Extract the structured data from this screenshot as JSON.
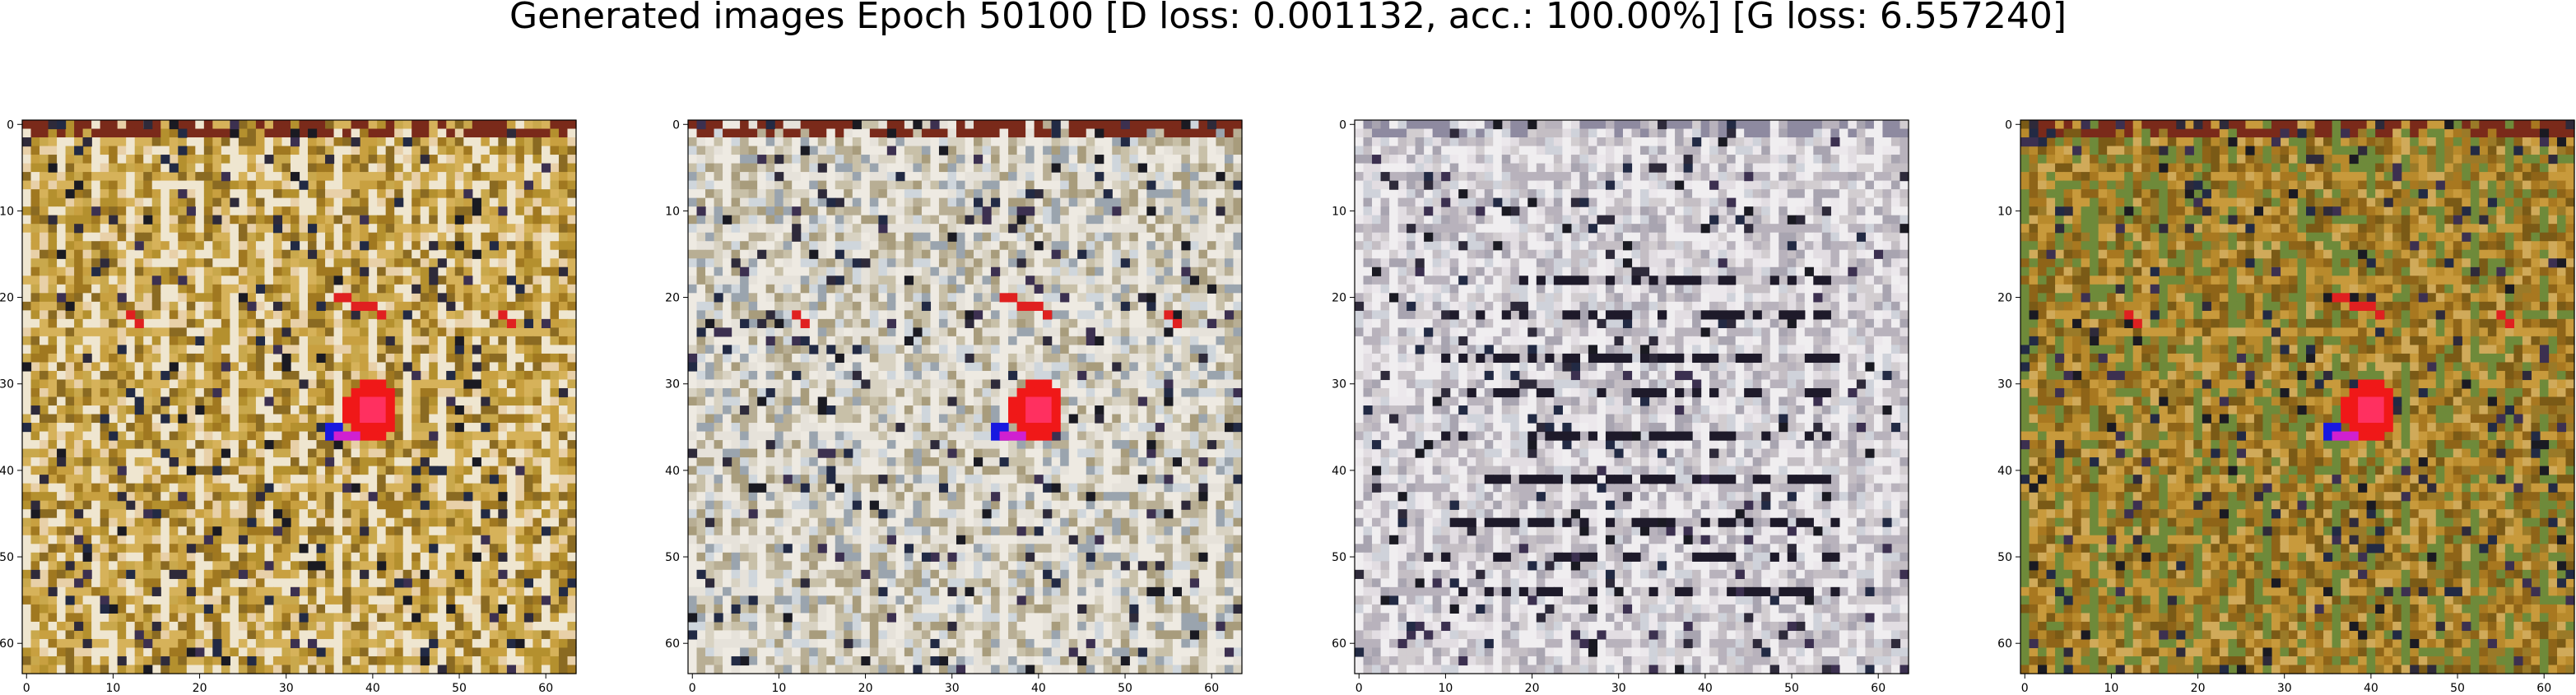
{
  "figure": {
    "title": "Generated images Epoch 50100 [D loss: 0.001132, acc.: 100.00%] [G loss: 6.557240]"
  },
  "panels": [
    {
      "name": "generated-image-1",
      "palette": [
        "#b4902e",
        "#c8a040",
        "#a07820",
        "#d6b25a",
        "#e8d0a8",
        "#8a6a22",
        "#c9a84c",
        "#efe6d0"
      ],
      "overlay": "red-blue",
      "x_ticks": [
        "0",
        "10",
        "20",
        "30",
        "40",
        "50",
        "60"
      ],
      "y_ticks": [
        "0",
        "10",
        "20",
        "30",
        "40",
        "50",
        "60"
      ]
    },
    {
      "name": "generated-image-2",
      "palette": [
        "#c8c0a8",
        "#d8d2c2",
        "#b8ae94",
        "#e6e2da",
        "#a89c7c",
        "#cfd6dc",
        "#9aa4ae",
        "#eeeae2"
      ],
      "overlay": "red-blue",
      "x_ticks": [
        "0",
        "10",
        "20",
        "30",
        "40",
        "50",
        "60"
      ],
      "y_ticks": [
        "0",
        "10",
        "20",
        "30",
        "40",
        "50",
        "60"
      ]
    },
    {
      "name": "generated-image-3",
      "palette": [
        "#d2cdd0",
        "#e2dde2",
        "#c4bec4",
        "#b8b2bc",
        "#ece8ec",
        "#cfd2da",
        "#a8a4b0",
        "#f0eef0"
      ],
      "overlay": "dark-lines",
      "x_ticks": [
        "0",
        "10",
        "20",
        "30",
        "40",
        "50",
        "60"
      ],
      "y_ticks": [
        "0",
        "10",
        "20",
        "30",
        "40",
        "50",
        "60"
      ]
    },
    {
      "name": "generated-image-4",
      "palette": [
        "#a87820",
        "#b88a2c",
        "#8e6418",
        "#c89a3c",
        "#7a5a16",
        "#d0aa5a",
        "#9a7a28",
        "#6e8a3a"
      ],
      "overlay": "red-blue",
      "x_ticks": [
        "0",
        "10",
        "20",
        "30",
        "40",
        "50",
        "60"
      ],
      "y_ticks": [
        "0",
        "10",
        "20",
        "30",
        "40",
        "50",
        "60"
      ]
    }
  ]
}
